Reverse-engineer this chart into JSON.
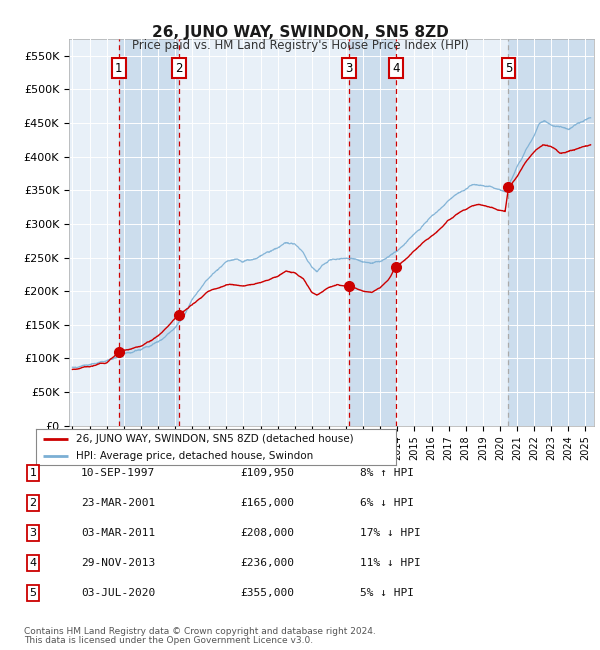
{
  "title": "26, JUNO WAY, SWINDON, SN5 8ZD",
  "subtitle": "Price paid vs. HM Land Registry's House Price Index (HPI)",
  "background_color": "#ffffff",
  "plot_bg_color": "#dce9f5",
  "grid_color": "#ffffff",
  "ylim": [
    0,
    575000
  ],
  "yticks": [
    0,
    50000,
    100000,
    150000,
    200000,
    250000,
    300000,
    350000,
    400000,
    450000,
    500000,
    550000
  ],
  "ytick_labels": [
    "£0",
    "£50K",
    "£100K",
    "£150K",
    "£200K",
    "£250K",
    "£300K",
    "£350K",
    "£400K",
    "£450K",
    "£500K",
    "£550K"
  ],
  "sales": [
    {
      "label": "1",
      "year": 1997.71,
      "price": 109950,
      "date_str": "10-SEP-1997",
      "hpi_pct": "8% ↑ HPI"
    },
    {
      "label": "2",
      "year": 2001.23,
      "price": 165000,
      "date_str": "23-MAR-2001",
      "hpi_pct": "6% ↓ HPI"
    },
    {
      "label": "3",
      "year": 2011.17,
      "price": 208000,
      "date_str": "03-MAR-2011",
      "hpi_pct": "17% ↓ HPI"
    },
    {
      "label": "4",
      "year": 2013.92,
      "price": 236000,
      "date_str": "29-NOV-2013",
      "hpi_pct": "11% ↓ HPI"
    },
    {
      "label": "5",
      "year": 2020.5,
      "price": 355000,
      "date_str": "03-JUL-2020",
      "hpi_pct": "5% ↓ HPI"
    }
  ],
  "legend_line1": "26, JUNO WAY, SWINDON, SN5 8ZD (detached house)",
  "legend_line2": "HPI: Average price, detached house, Swindon",
  "footer_line1": "Contains HM Land Registry data © Crown copyright and database right 2024.",
  "footer_line2": "This data is licensed under the Open Government Licence v3.0.",
  "sale_color": "#cc0000",
  "hpi_color": "#7bafd4",
  "vline_color_red": "#cc0000",
  "vline_color_gray": "#aaaaaa",
  "shade_colors": [
    "#e8f0f8",
    "#ccdded"
  ],
  "table_rows": [
    [
      "1",
      "10-SEP-1997",
      "£109,950",
      "8% ↑ HPI"
    ],
    [
      "2",
      "23-MAR-2001",
      "£165,000",
      "6% ↓ HPI"
    ],
    [
      "3",
      "03-MAR-2011",
      "£208,000",
      "17% ↓ HPI"
    ],
    [
      "4",
      "29-NOV-2013",
      "£236,000",
      "11% ↓ HPI"
    ],
    [
      "5",
      "03-JUL-2020",
      "£355,000",
      "5% ↓ HPI"
    ]
  ]
}
